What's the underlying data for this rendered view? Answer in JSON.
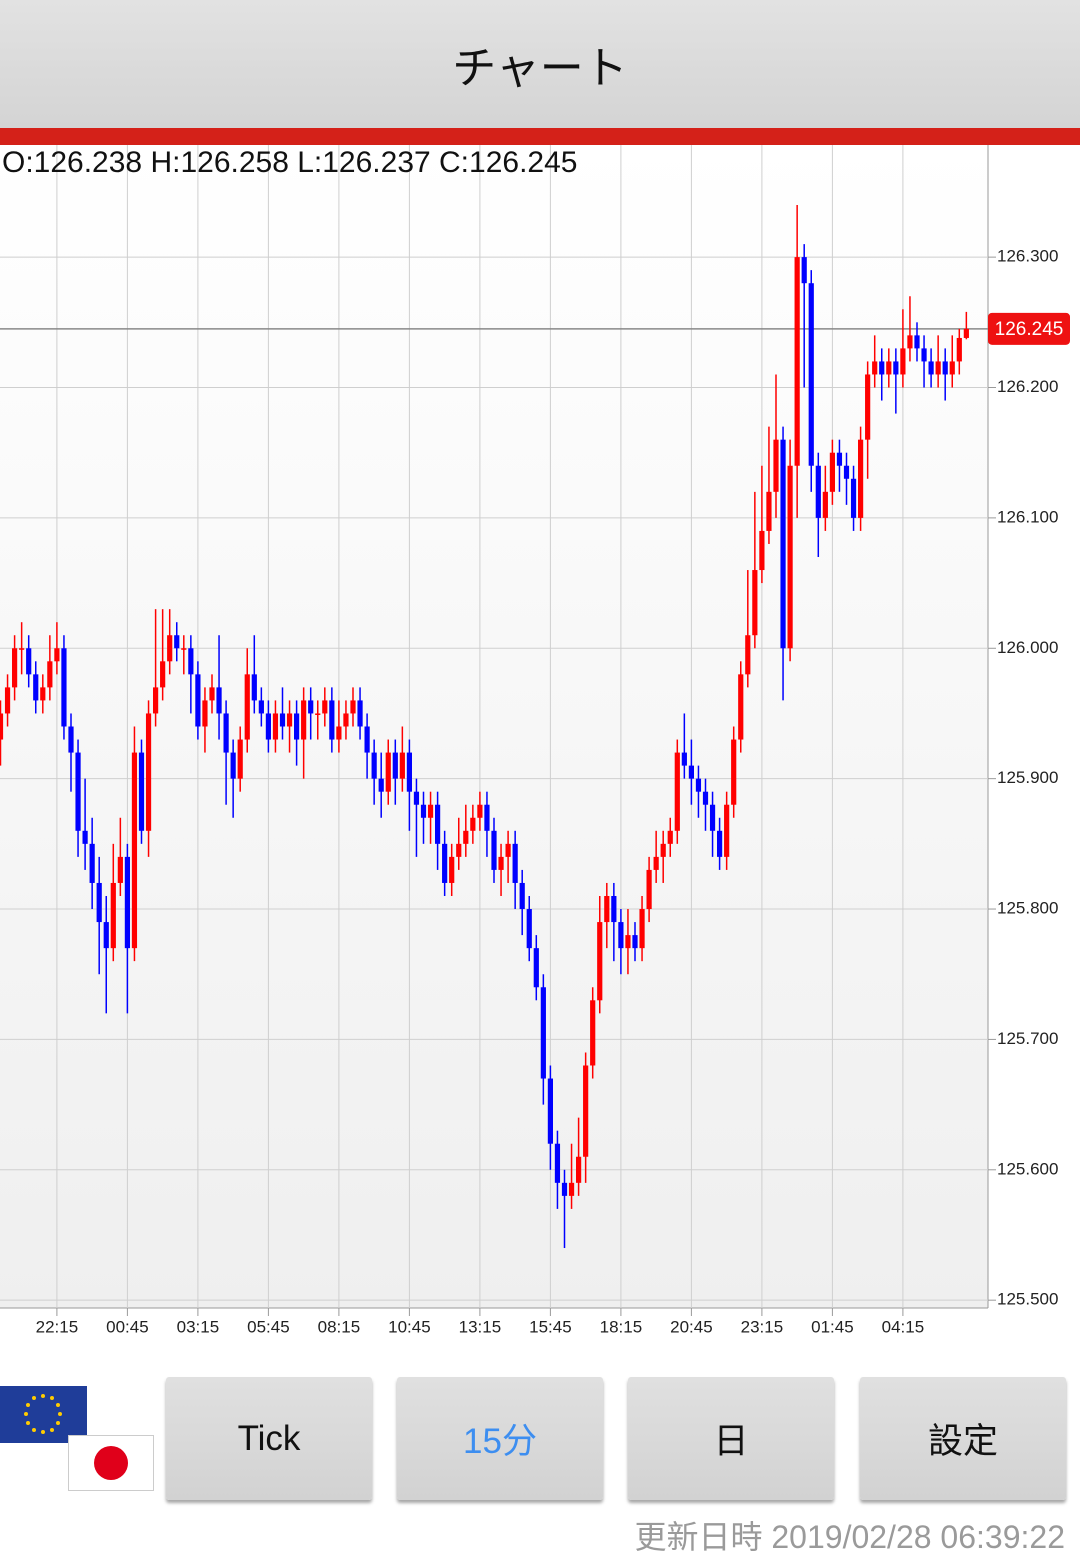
{
  "header": {
    "title": "チャート"
  },
  "chart_data": {
    "type": "candlestick",
    "ohlc_text": "O:126.238 H:126.258 L:126.237 C:126.245",
    "categories": [
      null,
      null,
      null,
      null,
      null,
      null,
      null,
      null,
      "22:15",
      null,
      null,
      null,
      null,
      null,
      null,
      null,
      null,
      null,
      "00:45",
      null,
      null,
      null,
      null,
      null,
      null,
      null,
      null,
      null,
      "03:15",
      null,
      null,
      null,
      null,
      null,
      null,
      null,
      null,
      null,
      "05:45",
      null,
      null,
      null,
      null,
      null,
      null,
      null,
      null,
      null,
      "08:15",
      null,
      null,
      null,
      null,
      null,
      null,
      null,
      null,
      null,
      "10:45",
      null,
      null,
      null,
      null,
      null,
      null,
      null,
      null,
      null,
      "13:15",
      null,
      null,
      null,
      null,
      null,
      null,
      null,
      null,
      null,
      "15:45",
      null,
      null,
      null,
      null,
      null,
      null,
      null,
      null,
      null,
      "18:15",
      null,
      null,
      null,
      null,
      null,
      null,
      null,
      null,
      null,
      "20:45",
      null,
      null,
      null,
      null,
      null,
      null,
      null,
      null,
      null,
      "23:15",
      null,
      null,
      null,
      null,
      null,
      null,
      null,
      null,
      null,
      "01:45",
      null,
      null,
      null,
      null,
      null,
      null,
      null,
      null,
      null,
      "04:15",
      null,
      null,
      null,
      null,
      null,
      null,
      null,
      null,
      null
    ],
    "open": [
      125.93,
      125.95,
      125.97,
      126.0,
      126.0,
      125.98,
      125.96,
      125.97,
      125.99,
      126.0,
      125.94,
      125.92,
      125.86,
      125.85,
      125.82,
      125.79,
      125.77,
      125.82,
      125.84,
      125.77,
      125.92,
      125.86,
      125.95,
      125.97,
      125.99,
      126.01,
      126.0,
      126.0,
      125.98,
      125.94,
      125.96,
      125.97,
      125.95,
      125.92,
      125.9,
      125.93,
      125.98,
      125.96,
      125.95,
      125.93,
      125.95,
      125.94,
      125.95,
      125.93,
      125.96,
      125.95,
      125.95,
      125.96,
      125.93,
      125.94,
      125.95,
      125.96,
      125.94,
      125.92,
      125.9,
      125.89,
      125.92,
      125.9,
      125.92,
      125.89,
      125.88,
      125.87,
      125.88,
      125.85,
      125.82,
      125.84,
      125.85,
      125.86,
      125.87,
      125.88,
      125.86,
      125.83,
      125.84,
      125.85,
      125.82,
      125.8,
      125.77,
      125.74,
      125.67,
      125.62,
      125.59,
      125.58,
      125.59,
      125.61,
      125.68,
      125.73,
      125.79,
      125.81,
      125.79,
      125.77,
      125.78,
      125.77,
      125.8,
      125.83,
      125.84,
      125.85,
      125.86,
      125.92,
      125.91,
      125.9,
      125.89,
      125.88,
      125.86,
      125.84,
      125.88,
      125.93,
      125.98,
      126.01,
      126.06,
      126.09,
      126.12,
      126.16,
      126.0,
      126.14,
      126.3,
      126.28,
      126.14,
      126.1,
      126.12,
      126.15,
      126.14,
      126.13,
      126.1,
      126.16,
      126.21,
      126.22,
      126.21,
      126.22,
      126.21,
      126.23,
      126.24,
      126.23,
      126.22,
      126.21,
      126.22,
      126.21,
      126.22,
      126.238
    ],
    "high": [
      125.96,
      125.98,
      126.01,
      126.02,
      126.01,
      125.99,
      125.98,
      126.01,
      126.02,
      126.01,
      125.95,
      125.93,
      125.9,
      125.87,
      125.84,
      125.81,
      125.85,
      125.87,
      125.85,
      125.94,
      125.93,
      125.96,
      126.03,
      126.03,
      126.03,
      126.02,
      126.01,
      126.01,
      125.99,
      125.97,
      125.98,
      126.01,
      125.96,
      125.93,
      125.94,
      126.0,
      126.01,
      125.97,
      125.96,
      125.96,
      125.97,
      125.96,
      125.96,
      125.97,
      125.97,
      125.96,
      125.97,
      125.97,
      125.96,
      125.96,
      125.97,
      125.97,
      125.95,
      125.93,
      125.92,
      125.93,
      125.93,
      125.94,
      125.93,
      125.9,
      125.89,
      125.89,
      125.89,
      125.86,
      125.85,
      125.87,
      125.88,
      125.88,
      125.89,
      125.89,
      125.87,
      125.85,
      125.86,
      125.86,
      125.83,
      125.81,
      125.78,
      125.75,
      125.68,
      125.63,
      125.6,
      125.62,
      125.64,
      125.69,
      125.74,
      125.81,
      125.82,
      125.82,
      125.8,
      125.8,
      125.79,
      125.81,
      125.84,
      125.86,
      125.86,
      125.87,
      125.93,
      125.95,
      125.93,
      125.91,
      125.9,
      125.89,
      125.87,
      125.89,
      125.94,
      125.99,
      126.06,
      126.12,
      126.14,
      126.17,
      126.21,
      126.17,
      126.16,
      126.34,
      126.31,
      126.29,
      126.15,
      126.14,
      126.16,
      126.16,
      126.15,
      126.14,
      126.17,
      126.22,
      126.24,
      126.23,
      126.23,
      126.23,
      126.26,
      126.27,
      126.25,
      126.24,
      126.23,
      126.24,
      126.23,
      126.24,
      126.245,
      126.258
    ],
    "low": [
      125.91,
      125.94,
      125.96,
      125.98,
      125.97,
      125.95,
      125.95,
      125.96,
      125.98,
      125.93,
      125.89,
      125.84,
      125.83,
      125.8,
      125.75,
      125.72,
      125.76,
      125.81,
      125.72,
      125.76,
      125.85,
      125.84,
      125.94,
      125.96,
      125.98,
      125.99,
      125.98,
      125.95,
      125.93,
      125.92,
      125.95,
      125.93,
      125.88,
      125.87,
      125.89,
      125.92,
      125.95,
      125.94,
      125.92,
      125.92,
      125.93,
      125.92,
      125.91,
      125.9,
      125.93,
      125.93,
      125.94,
      125.92,
      125.92,
      125.93,
      125.94,
      125.93,
      125.9,
      125.88,
      125.87,
      125.88,
      125.88,
      125.89,
      125.86,
      125.84,
      125.85,
      125.85,
      125.83,
      125.81,
      125.81,
      125.83,
      125.84,
      125.85,
      125.86,
      125.84,
      125.82,
      125.81,
      125.82,
      125.8,
      125.78,
      125.76,
      125.73,
      125.65,
      125.6,
      125.57,
      125.54,
      125.57,
      125.58,
      125.59,
      125.67,
      125.72,
      125.77,
      125.76,
      125.75,
      125.75,
      125.76,
      125.76,
      125.79,
      125.82,
      125.82,
      125.84,
      125.85,
      125.9,
      125.88,
      125.87,
      125.86,
      125.84,
      125.83,
      125.83,
      125.87,
      125.92,
      125.97,
      126.0,
      126.05,
      126.08,
      126.1,
      125.96,
      125.99,
      126.1,
      126.2,
      126.12,
      126.07,
      126.09,
      126.11,
      126.12,
      126.11,
      126.09,
      126.09,
      126.13,
      126.2,
      126.19,
      126.2,
      126.18,
      126.2,
      126.22,
      126.22,
      126.2,
      126.2,
      126.2,
      126.19,
      126.2,
      126.21,
      126.237
    ],
    "close": [
      125.95,
      125.97,
      126.0,
      126.0,
      125.98,
      125.96,
      125.97,
      125.99,
      126.0,
      125.94,
      125.92,
      125.86,
      125.85,
      125.82,
      125.79,
      125.77,
      125.82,
      125.84,
      125.77,
      125.92,
      125.86,
      125.95,
      125.97,
      125.99,
      126.01,
      126.0,
      126.0,
      125.98,
      125.94,
      125.96,
      125.97,
      125.95,
      125.92,
      125.9,
      125.93,
      125.98,
      125.96,
      125.95,
      125.93,
      125.95,
      125.94,
      125.95,
      125.93,
      125.96,
      125.95,
      125.95,
      125.96,
      125.93,
      125.94,
      125.95,
      125.96,
      125.94,
      125.92,
      125.9,
      125.89,
      125.92,
      125.9,
      125.92,
      125.89,
      125.88,
      125.87,
      125.88,
      125.85,
      125.82,
      125.84,
      125.85,
      125.86,
      125.87,
      125.88,
      125.86,
      125.83,
      125.84,
      125.85,
      125.82,
      125.8,
      125.77,
      125.74,
      125.67,
      125.62,
      125.59,
      125.58,
      125.59,
      125.61,
      125.68,
      125.73,
      125.79,
      125.81,
      125.79,
      125.77,
      125.78,
      125.77,
      125.8,
      125.83,
      125.84,
      125.85,
      125.86,
      125.92,
      125.91,
      125.9,
      125.89,
      125.88,
      125.86,
      125.84,
      125.88,
      125.93,
      125.98,
      126.01,
      126.06,
      126.09,
      126.12,
      126.16,
      126.0,
      126.14,
      126.3,
      126.28,
      126.14,
      126.1,
      126.12,
      126.15,
      126.14,
      126.13,
      126.1,
      126.16,
      126.21,
      126.22,
      126.21,
      126.22,
      126.21,
      126.23,
      126.24,
      126.23,
      126.22,
      126.21,
      126.22,
      126.21,
      126.22,
      126.238,
      126.245
    ],
    "up_color": "#ff0000",
    "down_color": "#0000ff",
    "last_price": 126.245,
    "last_price_color": "#ee1111",
    "ylim": [
      125.494,
      126.386
    ],
    "yticks": [
      {
        "value": 125.5,
        "label": "125.500"
      },
      {
        "value": 125.6,
        "label": "125.600"
      },
      {
        "value": 125.7,
        "label": "125.700"
      },
      {
        "value": 125.8,
        "label": "125.800"
      },
      {
        "value": 125.9,
        "label": "125.900"
      },
      {
        "value": 126.0,
        "label": "126.000"
      },
      {
        "value": 126.1,
        "label": "126.100"
      },
      {
        "value": 126.2,
        "label": "126.200"
      },
      {
        "value": 126.3,
        "label": "126.300"
      }
    ],
    "grid": true
  },
  "buttons": [
    "Tick",
    "15分",
    "日",
    "設定"
  ],
  "active_button": 1,
  "footer": {
    "updated": "更新日時 2019/02/28 06:39:22"
  }
}
